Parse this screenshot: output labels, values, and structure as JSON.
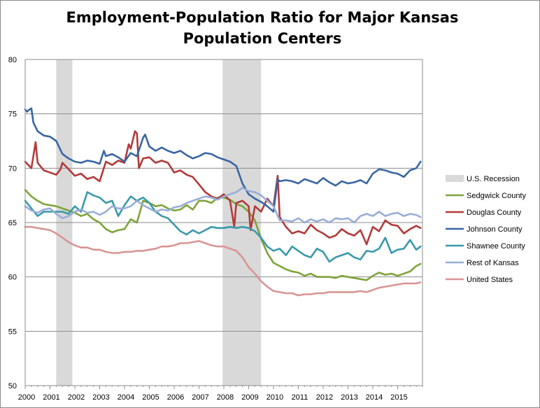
{
  "chart_data": {
    "type": "line",
    "title": "Employment-Population Ratio for Major Kansas Population Centers",
    "xlabel": "",
    "ylabel": "",
    "xlim": [
      2000.0,
      2016.0
    ],
    "ylim": [
      50,
      80
    ],
    "y_ticks": [
      50,
      55,
      60,
      65,
      70,
      75,
      80
    ],
    "x_tick_labels": [
      "2000",
      "2001",
      "2002",
      "2003",
      "2004",
      "2005",
      "2006",
      "2007",
      "2008",
      "2009",
      "2010",
      "2011",
      "2012",
      "2013",
      "2014",
      "2015"
    ],
    "grid": "horizontal",
    "legend_position": "right",
    "recession_label": "U.S. Recession",
    "recession_color": "#d9d9d9",
    "recessions": [
      [
        2001.25,
        2001.9
      ],
      [
        2007.95,
        2009.5
      ]
    ],
    "series": [
      {
        "name": "Sedgwick County",
        "color": "#7fa33a",
        "x": [
          2000.0,
          2000.25,
          2000.5,
          2000.75,
          2001.0,
          2001.25,
          2001.5,
          2001.75,
          2002.0,
          2002.25,
          2002.5,
          2002.75,
          2003.0,
          2003.25,
          2003.5,
          2003.75,
          2004.0,
          2004.25,
          2004.5,
          2004.75,
          2005.0,
          2005.25,
          2005.5,
          2005.75,
          2006.0,
          2006.25,
          2006.5,
          2006.75,
          2007.0,
          2007.25,
          2007.5,
          2007.75,
          2008.0,
          2008.25,
          2008.5,
          2008.75,
          2009.0,
          2009.25,
          2009.5,
          2009.75,
          2010.0,
          2010.25,
          2010.5,
          2010.75,
          2011.0,
          2011.25,
          2011.5,
          2011.75,
          2012.0,
          2012.25,
          2012.5,
          2012.75,
          2013.0,
          2013.25,
          2013.5,
          2013.75,
          2014.0,
          2014.25,
          2014.5,
          2014.75,
          2015.0,
          2015.25,
          2015.5,
          2015.75,
          2015.92
        ],
        "values": [
          68.0,
          67.4,
          67.0,
          66.7,
          66.6,
          66.5,
          66.3,
          66.1,
          65.9,
          65.6,
          65.8,
          65.3,
          65.0,
          64.4,
          64.1,
          64.3,
          64.4,
          65.3,
          65.0,
          67.0,
          66.8,
          66.5,
          66.6,
          66.3,
          66.1,
          66.2,
          66.6,
          66.2,
          67.0,
          67.0,
          66.8,
          67.3,
          67.3,
          67.1,
          66.7,
          66.5,
          66.0,
          65.2,
          63.5,
          62.2,
          61.3,
          61.0,
          60.7,
          60.5,
          60.4,
          60.1,
          60.3,
          60.0,
          60.0,
          60.0,
          59.9,
          60.1,
          60.0,
          59.9,
          59.8,
          59.7,
          60.1,
          60.4,
          60.2,
          60.3,
          60.1,
          60.3,
          60.5,
          61.0,
          61.2
        ]
      },
      {
        "name": "Douglas County",
        "color": "#b33a3a",
        "x": [
          2000.0,
          2000.25,
          2000.42,
          2000.5,
          2000.75,
          2001.0,
          2001.25,
          2001.42,
          2001.5,
          2001.75,
          2002.0,
          2002.25,
          2002.5,
          2002.75,
          2003.0,
          2003.25,
          2003.5,
          2003.75,
          2004.0,
          2004.17,
          2004.25,
          2004.42,
          2004.5,
          2004.58,
          2004.75,
          2005.0,
          2005.25,
          2005.5,
          2005.75,
          2006.0,
          2006.25,
          2006.5,
          2006.75,
          2007.0,
          2007.25,
          2007.5,
          2007.75,
          2008.0,
          2008.25,
          2008.42,
          2008.5,
          2008.75,
          2009.0,
          2009.08,
          2009.25,
          2009.5,
          2009.75,
          2010.0,
          2010.17,
          2010.25,
          2010.5,
          2010.75,
          2011.0,
          2011.25,
          2011.5,
          2011.75,
          2012.0,
          2012.25,
          2012.5,
          2012.75,
          2013.0,
          2013.25,
          2013.5,
          2013.75,
          2014.0,
          2014.25,
          2014.5,
          2014.75,
          2015.0,
          2015.25,
          2015.5,
          2015.75,
          2015.92
        ],
        "values": [
          70.6,
          70.0,
          72.4,
          70.5,
          69.8,
          69.6,
          69.4,
          69.9,
          70.5,
          69.9,
          69.3,
          69.5,
          69.0,
          69.2,
          68.8,
          70.6,
          70.3,
          70.7,
          70.5,
          72.2,
          71.8,
          73.4,
          73.2,
          70.0,
          70.9,
          71.0,
          70.5,
          70.7,
          70.5,
          69.6,
          69.8,
          69.4,
          69.2,
          68.5,
          67.8,
          67.4,
          67.2,
          67.6,
          67.0,
          64.6,
          66.8,
          67.0,
          66.5,
          64.3,
          66.5,
          66.0,
          67.2,
          66.5,
          69.3,
          65.5,
          64.6,
          64.0,
          64.2,
          64.0,
          64.8,
          64.3,
          64.0,
          63.6,
          63.8,
          64.4,
          64.0,
          63.8,
          64.3,
          63.0,
          64.6,
          64.2,
          65.2,
          64.8,
          64.7,
          64.0,
          64.4,
          64.7,
          64.5
        ]
      },
      {
        "name": "Johnson County",
        "color": "#3a66a3",
        "x": [
          2000.0,
          2000.08,
          2000.17,
          2000.25,
          2000.33,
          2000.5,
          2000.75,
          2001.0,
          2001.25,
          2001.5,
          2001.75,
          2002.0,
          2002.25,
          2002.5,
          2002.75,
          2003.0,
          2003.17,
          2003.25,
          2003.5,
          2003.75,
          2004.0,
          2004.25,
          2004.5,
          2004.75,
          2004.83,
          2005.0,
          2005.25,
          2005.5,
          2005.75,
          2006.0,
          2006.25,
          2006.5,
          2006.75,
          2007.0,
          2007.25,
          2007.5,
          2007.75,
          2008.0,
          2008.25,
          2008.5,
          2008.75,
          2009.0,
          2009.25,
          2009.5,
          2009.75,
          2010.0,
          2010.17,
          2010.25,
          2010.5,
          2010.75,
          2011.0,
          2011.25,
          2011.5,
          2011.75,
          2012.0,
          2012.25,
          2012.5,
          2012.75,
          2013.0,
          2013.25,
          2013.5,
          2013.75,
          2014.0,
          2014.25,
          2014.5,
          2014.75,
          2015.0,
          2015.25,
          2015.5,
          2015.75,
          2015.92
        ],
        "values": [
          75.4,
          75.2,
          75.4,
          75.5,
          74.2,
          73.4,
          73.0,
          72.9,
          72.5,
          71.3,
          70.9,
          70.6,
          70.5,
          70.7,
          70.6,
          70.4,
          71.6,
          71.1,
          71.3,
          71.0,
          70.6,
          71.4,
          71.1,
          72.8,
          73.1,
          72.0,
          71.6,
          71.9,
          71.6,
          71.4,
          71.6,
          71.2,
          70.9,
          71.1,
          71.4,
          71.3,
          71.0,
          70.8,
          70.6,
          70.2,
          68.6,
          67.6,
          67.2,
          66.9,
          66.5,
          66.0,
          69.0,
          68.8,
          68.9,
          68.8,
          68.6,
          69.0,
          68.8,
          68.6,
          69.1,
          68.7,
          68.4,
          68.8,
          68.6,
          68.7,
          68.9,
          68.6,
          69.5,
          69.9,
          69.8,
          69.6,
          69.5,
          69.2,
          69.8,
          70.0,
          70.6
        ]
      },
      {
        "name": "Shawnee County",
        "color": "#3a99ab",
        "x": [
          2000.0,
          2000.25,
          2000.5,
          2000.75,
          2001.0,
          2001.25,
          2001.5,
          2001.75,
          2002.0,
          2002.25,
          2002.5,
          2002.75,
          2003.0,
          2003.25,
          2003.5,
          2003.75,
          2004.0,
          2004.25,
          2004.5,
          2004.75,
          2005.0,
          2005.25,
          2005.5,
          2005.75,
          2006.0,
          2006.25,
          2006.5,
          2006.75,
          2007.0,
          2007.25,
          2007.5,
          2007.75,
          2008.0,
          2008.25,
          2008.5,
          2008.75,
          2009.0,
          2009.25,
          2009.5,
          2009.75,
          2010.0,
          2010.25,
          2010.5,
          2010.75,
          2011.0,
          2011.25,
          2011.5,
          2011.75,
          2012.0,
          2012.25,
          2012.5,
          2012.75,
          2013.0,
          2013.25,
          2013.5,
          2013.75,
          2014.0,
          2014.25,
          2014.5,
          2014.75,
          2015.0,
          2015.25,
          2015.5,
          2015.75,
          2015.92
        ],
        "values": [
          67.0,
          66.3,
          65.6,
          66.0,
          66.0,
          66.0,
          66.0,
          65.8,
          66.5,
          66.0,
          67.8,
          67.5,
          67.3,
          66.8,
          67.0,
          65.6,
          66.6,
          67.4,
          67.0,
          67.3,
          66.8,
          66.0,
          65.6,
          65.4,
          64.8,
          64.2,
          63.9,
          64.3,
          64.0,
          64.3,
          64.6,
          64.5,
          64.5,
          64.6,
          64.5,
          64.6,
          64.5,
          64.2,
          63.6,
          62.8,
          62.4,
          62.6,
          62.0,
          62.8,
          62.4,
          62.0,
          61.8,
          62.6,
          62.3,
          61.4,
          61.8,
          62.0,
          62.2,
          61.8,
          61.6,
          62.4,
          62.3,
          62.6,
          63.6,
          62.2,
          62.5,
          62.6,
          63.4,
          62.5,
          62.8
        ]
      },
      {
        "name": "Rest of Kansas",
        "color": "#99aed6",
        "x": [
          2000.0,
          2000.25,
          2000.5,
          2000.75,
          2001.0,
          2001.25,
          2001.5,
          2001.75,
          2002.0,
          2002.25,
          2002.5,
          2002.75,
          2003.0,
          2003.25,
          2003.5,
          2003.75,
          2004.0,
          2004.25,
          2004.5,
          2004.75,
          2005.0,
          2005.25,
          2005.5,
          2005.75,
          2006.0,
          2006.25,
          2006.5,
          2006.75,
          2007.0,
          2007.25,
          2007.5,
          2007.75,
          2008.0,
          2008.25,
          2008.5,
          2008.75,
          2009.0,
          2009.25,
          2009.5,
          2009.75,
          2010.0,
          2010.25,
          2010.5,
          2010.75,
          2011.0,
          2011.25,
          2011.5,
          2011.75,
          2012.0,
          2012.25,
          2012.5,
          2012.75,
          2013.0,
          2013.25,
          2013.5,
          2013.75,
          2014.0,
          2014.25,
          2014.5,
          2014.75,
          2015.0,
          2015.25,
          2015.5,
          2015.75,
          2015.92
        ],
        "values": [
          66.5,
          66.1,
          65.9,
          66.2,
          66.3,
          65.8,
          65.4,
          65.6,
          66.0,
          66.2,
          65.9,
          66.0,
          65.7,
          66.0,
          66.5,
          66.3,
          66.3,
          66.5,
          67.0,
          66.6,
          66.3,
          66.0,
          66.2,
          66.1,
          66.4,
          66.5,
          66.8,
          67.0,
          67.2,
          67.4,
          67.3,
          67.1,
          67.4,
          67.6,
          67.8,
          68.2,
          67.9,
          67.8,
          67.5,
          67.0,
          66.5,
          65.2,
          65.2,
          65.1,
          65.4,
          65.0,
          65.3,
          65.1,
          65.3,
          65.0,
          65.4,
          65.3,
          65.4,
          65.0,
          65.6,
          65.8,
          65.6,
          66.0,
          65.6,
          65.8,
          65.9,
          65.6,
          65.8,
          65.7,
          65.5
        ]
      },
      {
        "name": "United States",
        "color": "#d99594",
        "x": [
          2000.0,
          2000.25,
          2000.5,
          2000.75,
          2001.0,
          2001.25,
          2001.5,
          2001.75,
          2002.0,
          2002.25,
          2002.5,
          2002.75,
          2003.0,
          2003.25,
          2003.5,
          2003.75,
          2004.0,
          2004.25,
          2004.5,
          2004.75,
          2005.0,
          2005.25,
          2005.5,
          2005.75,
          2006.0,
          2006.25,
          2006.5,
          2006.75,
          2007.0,
          2007.25,
          2007.5,
          2007.75,
          2008.0,
          2008.25,
          2008.5,
          2008.75,
          2009.0,
          2009.25,
          2009.5,
          2009.75,
          2010.0,
          2010.25,
          2010.5,
          2010.75,
          2011.0,
          2011.25,
          2011.5,
          2011.75,
          2012.0,
          2012.25,
          2012.5,
          2012.75,
          2013.0,
          2013.25,
          2013.5,
          2013.75,
          2014.0,
          2014.25,
          2014.5,
          2014.75,
          2015.0,
          2015.25,
          2015.5,
          2015.75,
          2015.92
        ],
        "values": [
          64.6,
          64.6,
          64.5,
          64.4,
          64.3,
          64.0,
          63.6,
          63.2,
          62.9,
          62.7,
          62.7,
          62.5,
          62.5,
          62.3,
          62.2,
          62.2,
          62.3,
          62.3,
          62.4,
          62.4,
          62.5,
          62.6,
          62.8,
          62.8,
          62.9,
          63.1,
          63.1,
          63.2,
          63.3,
          63.1,
          62.9,
          62.8,
          62.8,
          62.6,
          62.4,
          61.8,
          60.9,
          60.3,
          59.6,
          59.1,
          58.7,
          58.6,
          58.5,
          58.5,
          58.3,
          58.4,
          58.4,
          58.5,
          58.5,
          58.6,
          58.6,
          58.6,
          58.6,
          58.6,
          58.7,
          58.6,
          58.8,
          59.0,
          59.1,
          59.2,
          59.3,
          59.4,
          59.4,
          59.4,
          59.5
        ]
      }
    ]
  }
}
